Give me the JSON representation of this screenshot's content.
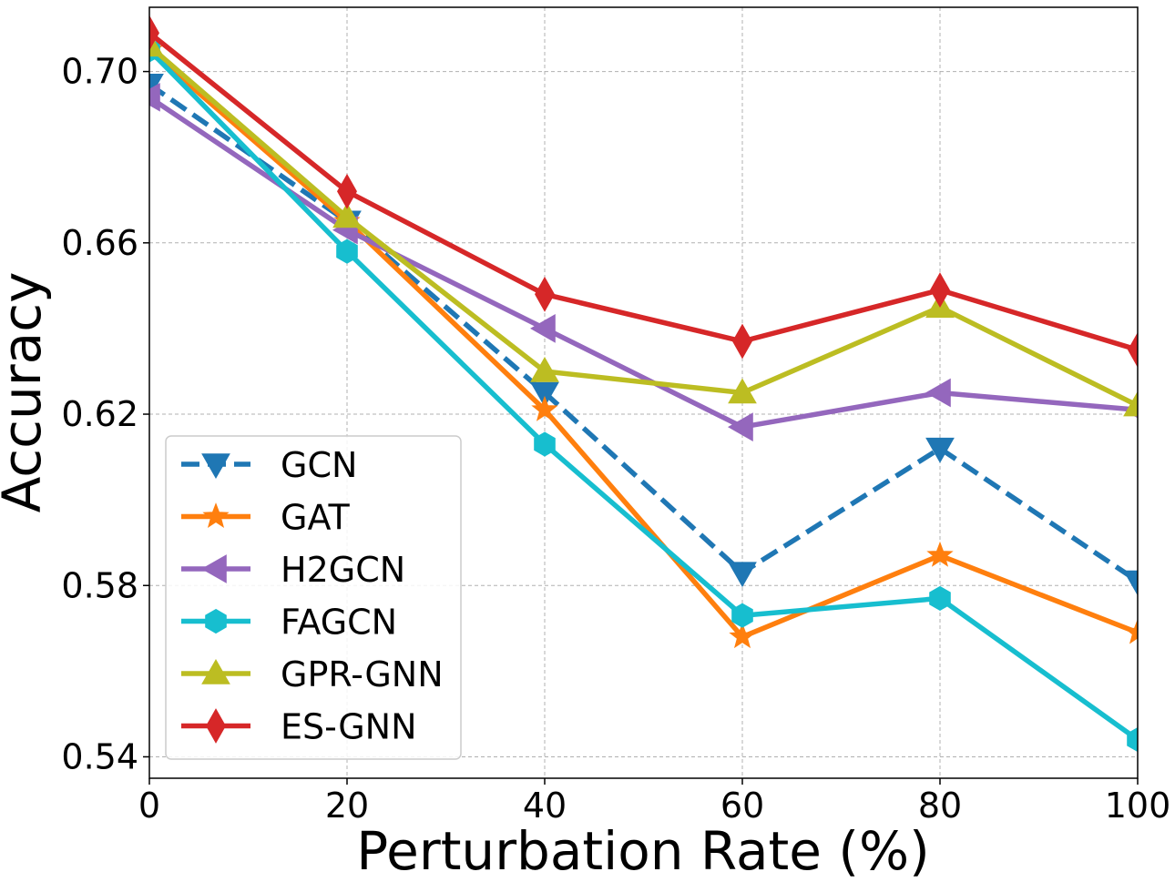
{
  "chart_data": {
    "type": "line",
    "title": "",
    "xlabel": "Perturbation Rate (%)",
    "ylabel": "Accuracy",
    "x": [
      0,
      20,
      40,
      60,
      80,
      100
    ],
    "xlim": [
      0,
      100
    ],
    "ylim": [
      0.535,
      0.715
    ],
    "xticks": [
      0,
      20,
      40,
      60,
      80,
      100
    ],
    "xtick_labels": [
      "0",
      "20",
      "40",
      "60",
      "80",
      "100"
    ],
    "yticks": [
      0.54,
      0.58,
      0.62,
      0.66,
      0.7
    ],
    "ytick_labels": [
      "0.54",
      "0.58",
      "0.62",
      "0.66",
      "0.70"
    ],
    "grid": true,
    "legend_position": "lower-left",
    "series": [
      {
        "name": "GCN",
        "color": "#1f77b4",
        "marker": "triangle-down",
        "linestyle": "dashed",
        "values": [
          0.697,
          0.665,
          0.625,
          0.583,
          0.612,
          0.581
        ]
      },
      {
        "name": "GAT",
        "color": "#ff7f0e",
        "marker": "star",
        "linestyle": "solid",
        "values": [
          0.705,
          0.665,
          0.621,
          0.568,
          0.587,
          0.569
        ]
      },
      {
        "name": "H2GCN",
        "color": "#9467bd",
        "marker": "triangle-left",
        "linestyle": "solid",
        "values": [
          0.694,
          0.663,
          0.64,
          0.617,
          0.625,
          0.621
        ]
      },
      {
        "name": "FAGCN",
        "color": "#17becf",
        "marker": "hexagon",
        "linestyle": "solid",
        "values": [
          0.705,
          0.658,
          0.613,
          0.573,
          0.577,
          0.544
        ]
      },
      {
        "name": "GPR-GNN",
        "color": "#bcbd22",
        "marker": "triangle-up",
        "linestyle": "solid",
        "values": [
          0.706,
          0.666,
          0.63,
          0.625,
          0.645,
          0.622
        ]
      },
      {
        "name": "ES-GNN",
        "color": "#d62728",
        "marker": "diamond",
        "linestyle": "solid",
        "values": [
          0.709,
          0.672,
          0.648,
          0.637,
          0.649,
          0.635
        ]
      }
    ]
  }
}
